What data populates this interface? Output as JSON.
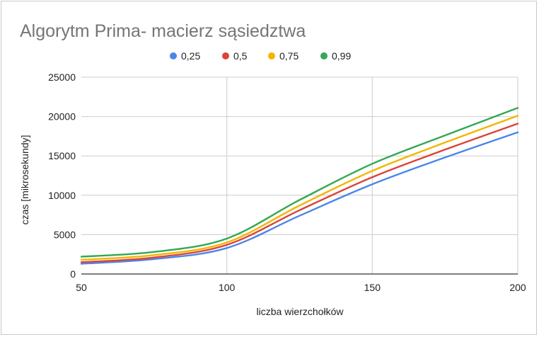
{
  "chart_data": {
    "type": "line",
    "title": "Algorytm Prima- macierz sąsiedztwa",
    "xlabel": "liczba wierzchołków",
    "ylabel": "czas [mikrosekundy]",
    "xlim": [
      50,
      200
    ],
    "ylim": [
      0,
      25000
    ],
    "x_ticks": [
      "50",
      "100",
      "150",
      "200"
    ],
    "y_ticks": [
      "0",
      "5000",
      "10000",
      "15000",
      "20000",
      "25000"
    ],
    "grid": true,
    "legend_position": "top",
    "x": [
      50,
      75,
      100,
      125,
      150,
      175,
      200
    ],
    "series": [
      {
        "name": "0,25",
        "color": "#4a86e8",
        "values": [
          1300,
          1900,
          3300,
          7400,
          11400,
          14800,
          18000
        ]
      },
      {
        "name": "0,5",
        "color": "#db4437",
        "values": [
          1500,
          2100,
          3700,
          8100,
          12300,
          15800,
          19100
        ]
      },
      {
        "name": "0,75",
        "color": "#f4b400",
        "values": [
          1800,
          2400,
          4000,
          8700,
          13100,
          16700,
          20100
        ]
      },
      {
        "name": "0,99",
        "color": "#34a853",
        "values": [
          2200,
          2800,
          4500,
          9400,
          14000,
          17600,
          21100
        ]
      }
    ]
  }
}
